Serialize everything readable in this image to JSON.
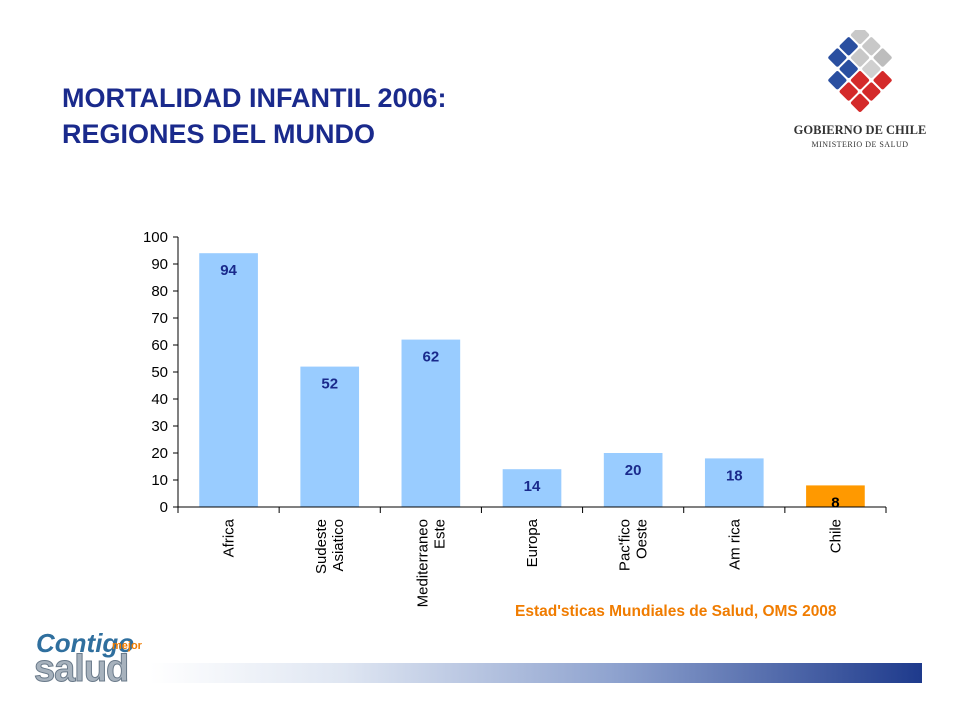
{
  "title": {
    "line1": "MORTALIDAD INFANTIL 2006:",
    "line2": "REGIONES  DEL MUNDO"
  },
  "logo": {
    "name": "GOBIERNO DE CHILE",
    "subtitle": "MINISTERIO DE SALUD"
  },
  "footer": {
    "logo_word1": "Contigo",
    "logo_word2": "mejor",
    "logo_word3": "salud"
  },
  "source": "Estad'sticas Mundiales de Salud, OMS 2008",
  "colors": {
    "title": "#1a2a8c",
    "bar": "#99ccff",
    "bar_highlight": "#ff9900",
    "label": "#1a2a8c",
    "source": "#f07c00"
  },
  "chart_data": {
    "type": "bar",
    "title": "",
    "xlabel": "",
    "ylabel": "",
    "ylim": [
      0,
      100
    ],
    "yticks": [
      0,
      10,
      20,
      30,
      40,
      50,
      60,
      70,
      80,
      90,
      100
    ],
    "grid": false,
    "legend": "none",
    "categories": [
      [
        "Africa"
      ],
      [
        "Sudeste",
        "Asiatico"
      ],
      [
        "Mediterraneo",
        "Este"
      ],
      [
        "Europa"
      ],
      [
        "Pac'fico",
        "Oeste"
      ],
      [
        "Am rica"
      ],
      [
        "Chile"
      ]
    ],
    "values": [
      94,
      52,
      62,
      14,
      20,
      18,
      8
    ],
    "highlight": "Chile"
  }
}
